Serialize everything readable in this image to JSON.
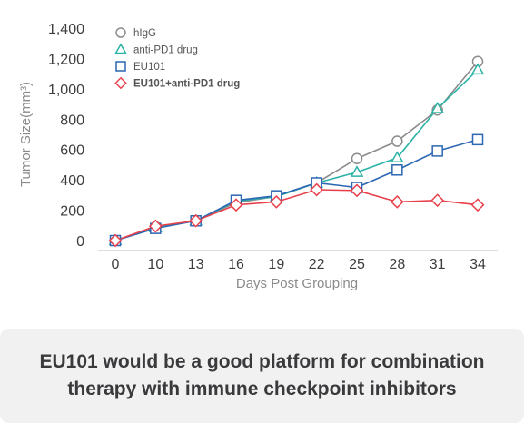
{
  "chart_data": {
    "type": "line",
    "x": [
      0,
      10,
      13,
      16,
      19,
      22,
      25,
      28,
      31,
      34
    ],
    "xlabel": "Days Post Grouping",
    "ylabel": "Tumor Size(mm³)",
    "ylim": [
      0,
      1400
    ],
    "yticks": [
      "0",
      "200",
      "400",
      "600",
      "800",
      "1,000",
      "1,200",
      "1,400"
    ],
    "ytick_values": [
      0,
      200,
      400,
      600,
      800,
      1000,
      1200,
      1400
    ],
    "xticks": [
      "0",
      "10",
      "13",
      "16",
      "19",
      "22",
      "25",
      "28",
      "31",
      "34"
    ],
    "grid": false,
    "legend_position": "top-left",
    "series": [
      {
        "name": "hIgG",
        "marker": "circle",
        "color": "#8c8c8c",
        "values": [
          0,
          90,
          130,
          250,
          290,
          380,
          540,
          655,
          860,
          1180
        ]
      },
      {
        "name": "anti-PD1 drug",
        "marker": "triangle",
        "color": "#2bb3a5",
        "values": [
          0,
          85,
          130,
          260,
          290,
          380,
          450,
          545,
          870,
          1125
        ]
      },
      {
        "name": "EU101",
        "marker": "square",
        "color": "#2c67b3",
        "values": [
          0,
          80,
          130,
          265,
          295,
          380,
          350,
          465,
          590,
          665
        ]
      },
      {
        "name": "EU101+anti-PD1 drug",
        "marker": "diamond",
        "color": "#e8404a",
        "values": [
          0,
          95,
          130,
          235,
          255,
          335,
          330,
          255,
          265,
          235
        ]
      }
    ]
  },
  "caption": {
    "line1": "EU101 would be a good platform for combination",
    "line2": "therapy with immune checkpoint inhibitors"
  }
}
